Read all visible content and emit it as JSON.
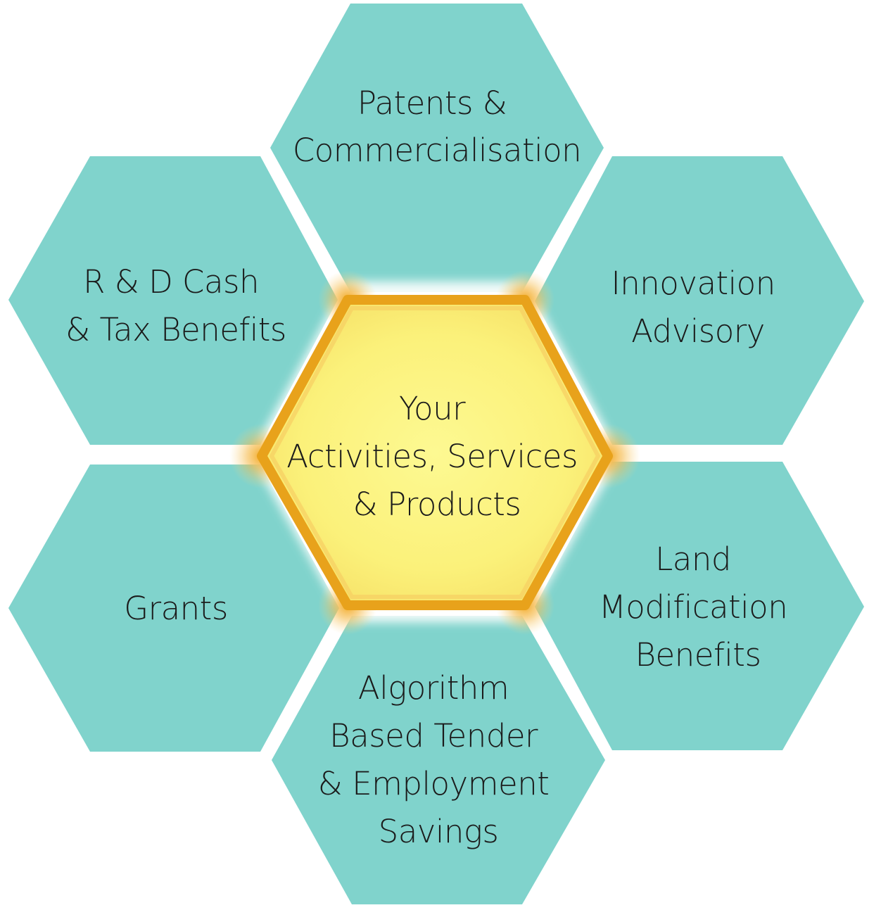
{
  "diagram": {
    "center": {
      "lines": [
        "Your",
        "Activities, Services",
        "& Products"
      ],
      "fill": "#fbf382",
      "border": "#e8a21b"
    },
    "hex_fill": "#80d3cc",
    "hexes": {
      "top": {
        "lines": [
          "Patents &",
          "Commercialisation"
        ]
      },
      "upper_left": {
        "lines": [
          "R & D Cash",
          "& Tax Benefits"
        ]
      },
      "upper_right": {
        "lines": [
          "Innovation",
          "Advisory"
        ]
      },
      "lower_left": {
        "lines": [
          "Grants"
        ]
      },
      "lower_right": {
        "lines": [
          "Land",
          "Modification",
          "Benefits"
        ]
      },
      "bottom": {
        "lines": [
          "Algorithm",
          "Based Tender",
          "& Employment",
          "Savings"
        ]
      }
    }
  }
}
